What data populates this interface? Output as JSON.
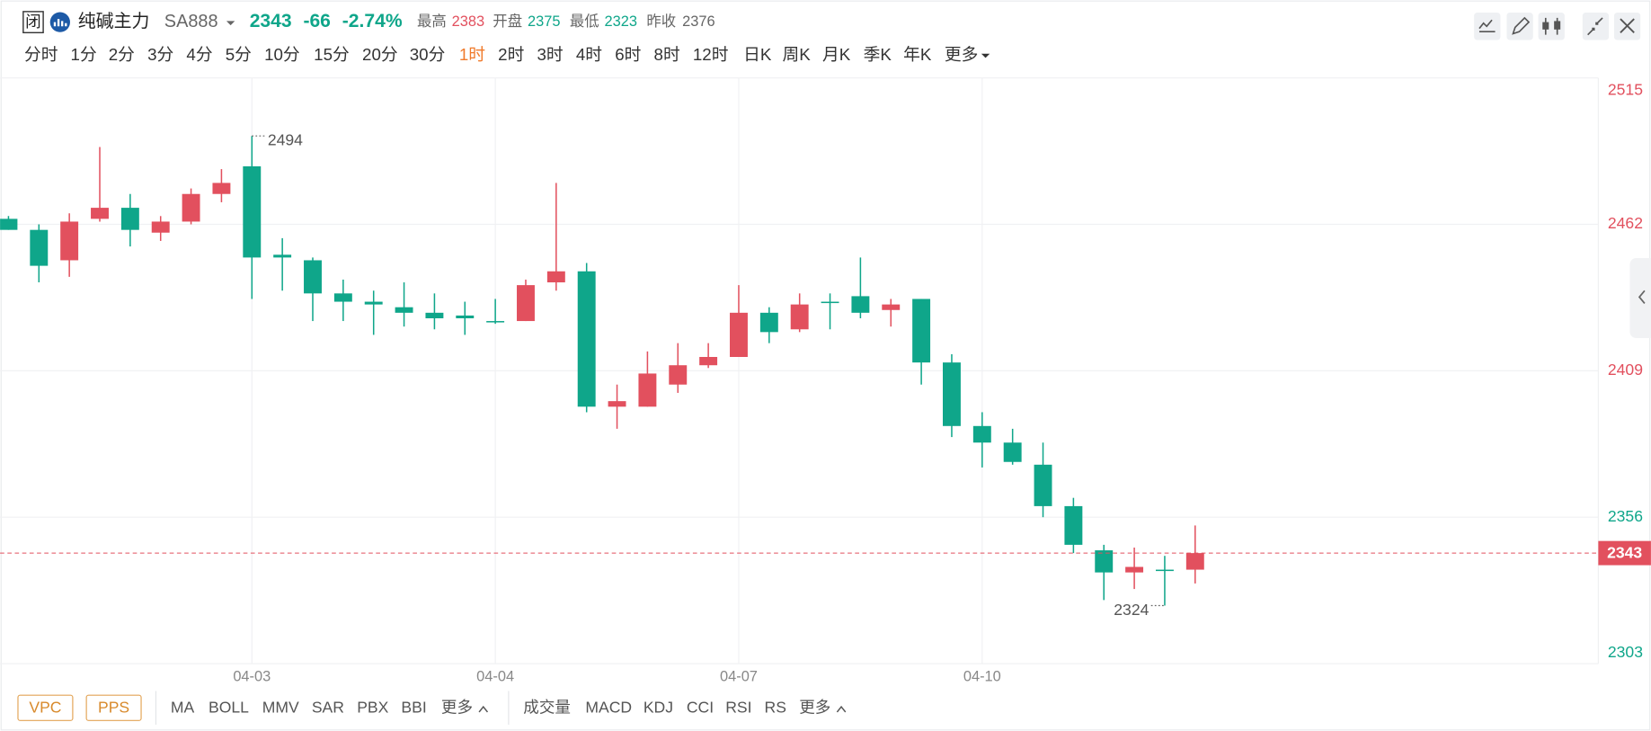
{
  "quote": {
    "status": "闭",
    "name": "纯碱主力",
    "code": "SA888",
    "price": 2343,
    "change": -66,
    "change_pct": "-2.74%",
    "stats": [
      {
        "label": "最高",
        "value": 2383
      },
      {
        "label": "开盘",
        "value": 2375
      },
      {
        "label": "最低",
        "value": 2323
      }
    ],
    "prev_close": {
      "label": "昨收",
      "value": 2376
    }
  },
  "periods": {
    "items": [
      "分时",
      "1分",
      "2分",
      "3分",
      "4分",
      "5分",
      "10分",
      "15分",
      "20分",
      "30分",
      "1时",
      "2时",
      "3时",
      "4时",
      "6时",
      "8时",
      "12时",
      "日K",
      "周K",
      "月K",
      "季K",
      "年K"
    ],
    "active": 10,
    "more": "更多"
  },
  "indicators": {
    "tags": [
      "VPC",
      "PPS"
    ],
    "main": [
      "MA",
      "BOLL",
      "MMV",
      "SAR",
      "PBX",
      "BBI"
    ],
    "main_more": "更多",
    "sub": [
      "成交量",
      "MACD",
      "KDJ",
      "CCI",
      "RSI",
      "RS"
    ],
    "sub_more": "更多"
  },
  "chart_data": {
    "type": "candlestick",
    "categories": [
      null,
      null,
      null,
      null,
      null,
      null,
      null,
      null,
      "04-03",
      null,
      null,
      null,
      null,
      null,
      null,
      null,
      "04-04",
      null,
      null,
      null,
      null,
      null,
      null,
      null,
      "04-07",
      null,
      null,
      null,
      null,
      null,
      null,
      null,
      "04-10",
      null,
      null,
      null,
      null,
      null,
      null,
      null
    ],
    "open": [
      2464,
      2460,
      2449,
      2464,
      2468,
      2459,
      2463,
      2473,
      2483,
      2451,
      2449,
      2437,
      2434,
      2432,
      2430,
      2429,
      2427,
      2427,
      2441,
      2445,
      2396,
      2396,
      2404,
      2411,
      2414,
      2430,
      2424,
      2434,
      2436,
      2431,
      2435,
      2412,
      2389,
      2383,
      2375,
      2360,
      2344,
      2336,
      2337,
      2337
    ],
    "high": [
      2465,
      2462,
      2466,
      2490,
      2473,
      2465,
      2475,
      2482,
      2494,
      2457,
      2450,
      2442,
      2438,
      2441,
      2437,
      2434,
      2435,
      2442,
      2477,
      2448,
      2404,
      2416,
      2419,
      2419,
      2440,
      2432,
      2437,
      2437,
      2450,
      2435,
      2435,
      2415,
      2394,
      2388,
      2383,
      2363,
      2346,
      2345,
      2342,
      2353
    ],
    "low": [
      2460,
      2441,
      2443,
      2463,
      2454,
      2456,
      2462,
      2470,
      2435,
      2438,
      2427,
      2427,
      2422,
      2425,
      2424,
      2422,
      2426,
      2427,
      2438,
      2394,
      2388,
      2396,
      2401,
      2410,
      2414,
      2419,
      2423,
      2424,
      2428,
      2425,
      2404,
      2385,
      2374,
      2375,
      2356,
      2343,
      2326,
      2330,
      2324,
      2332
    ],
    "close": [
      2460,
      2447,
      2463,
      2468,
      2460,
      2463,
      2473,
      2477,
      2450,
      2450,
      2437,
      2434,
      2433,
      2430,
      2428,
      2428,
      2427,
      2440,
      2445,
      2396,
      2398,
      2408,
      2411,
      2414,
      2430,
      2423,
      2433,
      2434,
      2430,
      2433,
      2412,
      2389,
      2383,
      2376,
      2360,
      2346,
      2336,
      2338,
      2337,
      2343
    ],
    "up_color": "#e2505e",
    "down_color": "#0fa68a",
    "ylim": [
      2303,
      2515
    ],
    "yticks": [
      2303,
      2356,
      2409,
      2462,
      2515
    ],
    "grid": true
  }
}
